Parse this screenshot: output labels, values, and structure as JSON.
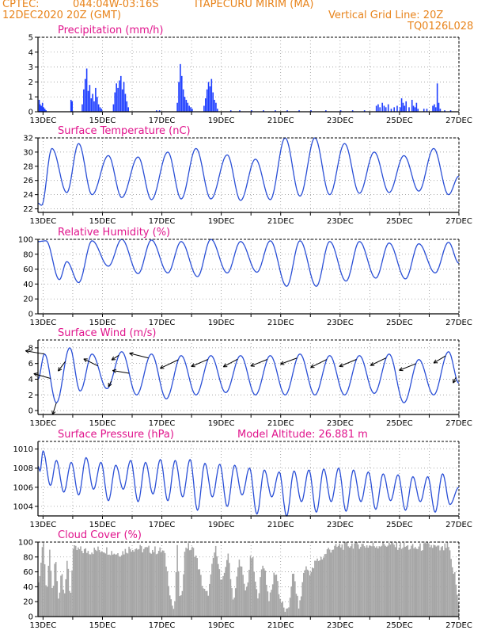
{
  "header": {
    "source": "CPTEC:",
    "coords": "044:04W-03:16S",
    "location": "ITAPECURU MIRIM (MA)",
    "run": "12DEC2020 20Z (GMT)",
    "grid_note": "Vertical Grid Line: 20Z",
    "code": "TQ0126L028"
  },
  "colors": {
    "header": "#e8841c",
    "title": "#e0148c",
    "line": "#2a4fd6",
    "bar": "#1f3fff",
    "cloud": "#a6a6a6"
  },
  "chart_data": [
    {
      "type": "bar",
      "title": "Precipitation (mm/h)",
      "x_ticks": [
        "13DEC",
        "15DEC",
        "17DEC",
        "19DEC",
        "21DEC",
        "23DEC",
        "25DEC",
        "27DEC"
      ],
      "x_range_days": [
        12.83,
        27.0
      ],
      "ylim": [
        0,
        5
      ],
      "y_ticks": [
        0,
        1,
        2,
        3,
        4,
        5
      ],
      "grid": true,
      "x": [
        12.85,
        12.88,
        12.92,
        12.96,
        13.0,
        13.04,
        13.08,
        13.92,
        13.96,
        14.3,
        14.35,
        14.4,
        14.45,
        14.5,
        14.55,
        14.6,
        14.65,
        14.7,
        14.75,
        14.8,
        14.85,
        14.9,
        14.95,
        15.35,
        15.4,
        15.45,
        15.5,
        15.55,
        15.6,
        15.65,
        15.7,
        15.75,
        15.8,
        15.85,
        16.8,
        16.9,
        17.5,
        17.55,
        17.6,
        17.65,
        17.7,
        17.75,
        17.8,
        17.85,
        17.9,
        17.95,
        18.0,
        18.4,
        18.45,
        18.5,
        18.55,
        18.6,
        18.65,
        18.7,
        18.75,
        18.8,
        18.85,
        19.3,
        19.6,
        20.0,
        20.4,
        20.8,
        21.2,
        21.6,
        22.0,
        22.5,
        23.0,
        23.4,
        23.8,
        24.2,
        24.26,
        24.32,
        24.4,
        24.46,
        24.52,
        24.6,
        24.7,
        24.8,
        24.9,
        25.0,
        25.05,
        25.1,
        25.15,
        25.2,
        25.3,
        25.4,
        25.45,
        25.5,
        25.55,
        25.6,
        25.8,
        25.9,
        26.1,
        26.15,
        26.2,
        26.25,
        26.3,
        26.35,
        26.5,
        26.7
      ],
      "values": [
        0.8,
        0.5,
        0.4,
        0.6,
        0.3,
        0.2,
        0.1,
        0.8,
        0.7,
        0.5,
        1.5,
        2.2,
        2.9,
        1.4,
        1.8,
        0.9,
        1.2,
        0.7,
        1.6,
        1.0,
        0.5,
        0.3,
        0.2,
        0.5,
        1.3,
        1.9,
        1.6,
        2.1,
        2.4,
        1.5,
        2.0,
        1.2,
        0.7,
        0.3,
        0.1,
        0.1,
        0.6,
        2.0,
        3.2,
        2.4,
        1.5,
        1.0,
        0.8,
        0.6,
        0.4,
        0.3,
        0.2,
        0.4,
        0.9,
        1.5,
        2.0,
        1.7,
        2.2,
        1.3,
        0.8,
        0.6,
        0.2,
        0.1,
        0.1,
        0.1,
        0.1,
        0.1,
        0.1,
        0.1,
        0.1,
        0.1,
        0.1,
        0.1,
        0.1,
        0.4,
        0.5,
        0.3,
        0.6,
        0.4,
        0.3,
        0.5,
        0.2,
        0.3,
        0.4,
        0.3,
        0.9,
        0.6,
        0.4,
        0.7,
        0.3,
        0.8,
        0.4,
        0.3,
        0.6,
        0.2,
        0.2,
        0.2,
        0.4,
        0.5,
        0.3,
        1.9,
        0.6,
        0.2,
        0.1,
        0.1
      ]
    },
    {
      "type": "line",
      "title": "Surface Temperature (nC)",
      "x_ticks": [
        "13DEC",
        "15DEC",
        "17DEC",
        "19DEC",
        "21DEC",
        "23DEC",
        "25DEC",
        "27DEC"
      ],
      "x_range_days": [
        12.83,
        27.0
      ],
      "ylim": [
        21.5,
        32
      ],
      "y_ticks": [
        22,
        24,
        26,
        28,
        30,
        32
      ],
      "grid": true,
      "extrema_t": [
        12.83,
        12.95,
        13.3,
        13.8,
        14.2,
        14.65,
        15.2,
        15.65,
        16.2,
        16.65,
        17.2,
        17.65,
        18.15,
        18.65,
        19.2,
        19.65,
        20.15,
        20.65,
        21.15,
        21.65,
        22.15,
        22.65,
        23.15,
        23.65,
        24.15,
        24.65,
        25.15,
        25.65,
        26.15,
        26.65,
        27.0
      ],
      "extrema_v": [
        22.8,
        22.5,
        30.5,
        24.3,
        31.2,
        24.0,
        29.5,
        23.6,
        29.3,
        23.3,
        30.0,
        23.4,
        30.5,
        23.4,
        29.6,
        23.2,
        29.0,
        23.3,
        32.0,
        23.8,
        32.0,
        24.0,
        31.2,
        24.2,
        30.0,
        24.3,
        29.5,
        24.5,
        30.5,
        24.0,
        26.6
      ]
    },
    {
      "type": "line",
      "title": "Relative Humidity (%)",
      "x_ticks": [
        "13DEC",
        "15DEC",
        "17DEC",
        "19DEC",
        "21DEC",
        "23DEC",
        "25DEC",
        "27DEC"
      ],
      "x_range_days": [
        12.83,
        27.0
      ],
      "ylim": [
        0,
        100
      ],
      "y_ticks": [
        0,
        20,
        40,
        60,
        80,
        100
      ],
      "grid": true,
      "extrema_t": [
        12.83,
        13.1,
        13.55,
        13.8,
        14.2,
        14.65,
        15.2,
        15.65,
        16.2,
        16.65,
        17.2,
        17.65,
        18.2,
        18.65,
        19.2,
        19.65,
        20.2,
        20.65,
        21.2,
        21.65,
        22.2,
        22.65,
        23.2,
        23.65,
        24.2,
        24.65,
        25.2,
        25.65,
        26.2,
        26.65,
        27.0
      ],
      "extrema_v": [
        97,
        98,
        46,
        70,
        42,
        98,
        64,
        100,
        54,
        99,
        55,
        97,
        50,
        100,
        55,
        97,
        56,
        98,
        37,
        98,
        37,
        97,
        44,
        97,
        48,
        95,
        47,
        94,
        55,
        96,
        68
      ]
    },
    {
      "type": "line",
      "title": "Surface Wind (m/s)",
      "x_ticks": [
        "13DEC",
        "15DEC",
        "17DEC",
        "19DEC",
        "21DEC",
        "23DEC",
        "25DEC",
        "27DEC"
      ],
      "x_range_days": [
        12.83,
        27.0
      ],
      "ylim": [
        -0.5,
        9
      ],
      "y_ticks": [
        0,
        2,
        4,
        6,
        8
      ],
      "grid": true,
      "extrema_t": [
        12.83,
        13.05,
        13.45,
        13.9,
        14.25,
        14.65,
        15.15,
        15.65,
        16.15,
        16.65,
        17.15,
        17.65,
        18.15,
        18.65,
        19.15,
        19.65,
        20.15,
        20.65,
        21.15,
        21.65,
        22.15,
        22.65,
        23.15,
        23.65,
        24.15,
        24.65,
        25.15,
        25.65,
        26.15,
        26.65,
        27.0
      ],
      "extrema_v": [
        4.0,
        7.2,
        1.0,
        8.0,
        2.5,
        7.2,
        2.8,
        7.5,
        2.0,
        7.2,
        1.5,
        7.0,
        2.0,
        7.0,
        2.3,
        7.0,
        2.0,
        7.0,
        2.0,
        7.2,
        2.0,
        7.0,
        2.0,
        7.0,
        2.2,
        7.2,
        1.0,
        6.5,
        2.0,
        7.5,
        3.5
      ],
      "vectors": [
        {
          "t": 13.05,
          "u": -4.0,
          "v": 0.7
        },
        {
          "t": 13.25,
          "u": -3.5,
          "v": 1.0
        },
        {
          "t": 13.45,
          "u": -0.8,
          "v": -2.5
        },
        {
          "t": 13.75,
          "u": -1.5,
          "v": -2.0
        },
        {
          "t": 14.85,
          "u": -3.0,
          "v": 1.5
        },
        {
          "t": 15.3,
          "u": -0.6,
          "v": -1.2
        },
        {
          "t": 15.55,
          "u": -1.5,
          "v": -1.0
        },
        {
          "t": 15.9,
          "u": -3.5,
          "v": 0.6
        },
        {
          "t": 16.55,
          "u": -4.0,
          "v": 1.0
        },
        {
          "t": 17.55,
          "u": -3.8,
          "v": -1.8
        },
        {
          "t": 18.55,
          "u": -3.5,
          "v": -1.5
        },
        {
          "t": 19.55,
          "u": -3.0,
          "v": -1.6
        },
        {
          "t": 20.55,
          "u": -3.5,
          "v": -1.4
        },
        {
          "t": 21.55,
          "u": -3.5,
          "v": -1.3
        },
        {
          "t": 22.55,
          "u": -3.4,
          "v": -1.7
        },
        {
          "t": 23.55,
          "u": -3.6,
          "v": -1.5
        },
        {
          "t": 24.55,
          "u": -3.3,
          "v": -1.6
        },
        {
          "t": 25.55,
          "u": -3.5,
          "v": -1.4
        },
        {
          "t": 26.55,
          "u": -2.5,
          "v": -1.5
        },
        {
          "t": 26.9,
          "u": -0.6,
          "v": -1.2
        }
      ]
    },
    {
      "type": "line",
      "title": "Surface Pressure (hPa)",
      "annotation": "Model Altitude: 26.881 m",
      "x_ticks": [
        "13DEC",
        "15DEC",
        "17DEC",
        "19DEC",
        "21DEC",
        "23DEC",
        "25DEC",
        "27DEC"
      ],
      "x_range_days": [
        12.83,
        27.0
      ],
      "ylim": [
        1003,
        1010.8
      ],
      "y_ticks": [
        1004,
        1006,
        1008,
        1010
      ],
      "grid": true,
      "extrema_t": [
        12.83,
        12.9,
        13.0,
        13.25,
        13.45,
        13.7,
        13.95,
        14.2,
        14.45,
        14.7,
        14.95,
        15.2,
        15.45,
        15.7,
        15.95,
        16.2,
        16.45,
        16.7,
        16.95,
        17.2,
        17.45,
        17.7,
        17.95,
        18.2,
        18.45,
        18.7,
        18.95,
        19.2,
        19.45,
        19.7,
        19.95,
        20.2,
        20.45,
        20.7,
        20.95,
        21.2,
        21.45,
        21.7,
        21.95,
        22.2,
        22.45,
        22.7,
        22.95,
        23.2,
        23.45,
        23.7,
        23.95,
        24.2,
        24.45,
        24.7,
        24.95,
        25.2,
        25.45,
        25.7,
        25.95,
        26.2,
        26.45,
        26.7,
        27.0
      ],
      "extrema_v": [
        1008.2,
        1007.7,
        1009.8,
        1006.2,
        1008.8,
        1005.5,
        1008.6,
        1005.2,
        1009.1,
        1005.8,
        1008.6,
        1004.6,
        1008.3,
        1005.8,
        1008.8,
        1004.5,
        1008.6,
        1005.3,
        1008.9,
        1004.6,
        1008.8,
        1005.0,
        1008.9,
        1003.6,
        1008.5,
        1005.0,
        1008.4,
        1004.0,
        1008.3,
        1005.2,
        1008.0,
        1003.2,
        1007.8,
        1005.0,
        1007.6,
        1003.0,
        1007.7,
        1004.5,
        1007.8,
        1003.4,
        1007.9,
        1004.5,
        1008.0,
        1003.5,
        1007.8,
        1004.5,
        1007.6,
        1003.7,
        1007.4,
        1004.6,
        1007.3,
        1003.6,
        1007.1,
        1004.5,
        1007.1,
        1003.4,
        1007.4,
        1004.2,
        1006.0
      ]
    },
    {
      "type": "bar",
      "title": "Cloud Cover (%)",
      "x_ticks": [
        "13DEC",
        "15DEC",
        "17DEC",
        "19DEC",
        "21DEC",
        "23DEC",
        "25DEC",
        "27DEC"
      ],
      "x_range_days": [
        12.83,
        27.0
      ],
      "ylim": [
        0,
        100
      ],
      "y_ticks": [
        0,
        20,
        40,
        60,
        80,
        100
      ],
      "grid": true,
      "segments_t": [
        12.83,
        13.0,
        13.1,
        13.2,
        13.3,
        13.4,
        13.5,
        13.6,
        13.7,
        13.8,
        13.9,
        14.0,
        14.5,
        15.0,
        15.5,
        16.0,
        16.5,
        17.0,
        17.4,
        17.5,
        17.6,
        17.8,
        18.0,
        18.5,
        18.8,
        19.0,
        19.2,
        19.4,
        19.6,
        19.8,
        20.0,
        20.2,
        20.4,
        20.6,
        20.8,
        21.0,
        21.1,
        21.2,
        21.4,
        21.6,
        21.8,
        22.0,
        22.2,
        22.4,
        22.6,
        22.8,
        23.0,
        23.5,
        24.0,
        24.5,
        25.0,
        25.5,
        26.0,
        26.4,
        26.6,
        26.8,
        27.0
      ],
      "segments_v": [
        50,
        95,
        30,
        85,
        35,
        75,
        25,
        60,
        35,
        70,
        30,
        90,
        88,
        90,
        85,
        92,
        90,
        88,
        10,
        90,
        20,
        95,
        90,
        30,
        90,
        45,
        80,
        25,
        75,
        35,
        80,
        30,
        70,
        25,
        60,
        20,
        10,
        5,
        55,
        15,
        65,
        60,
        75,
        80,
        90,
        92,
        95,
        97,
        95,
        97,
        95,
        92,
        95,
        90,
        95,
        60,
        15
      ]
    }
  ]
}
